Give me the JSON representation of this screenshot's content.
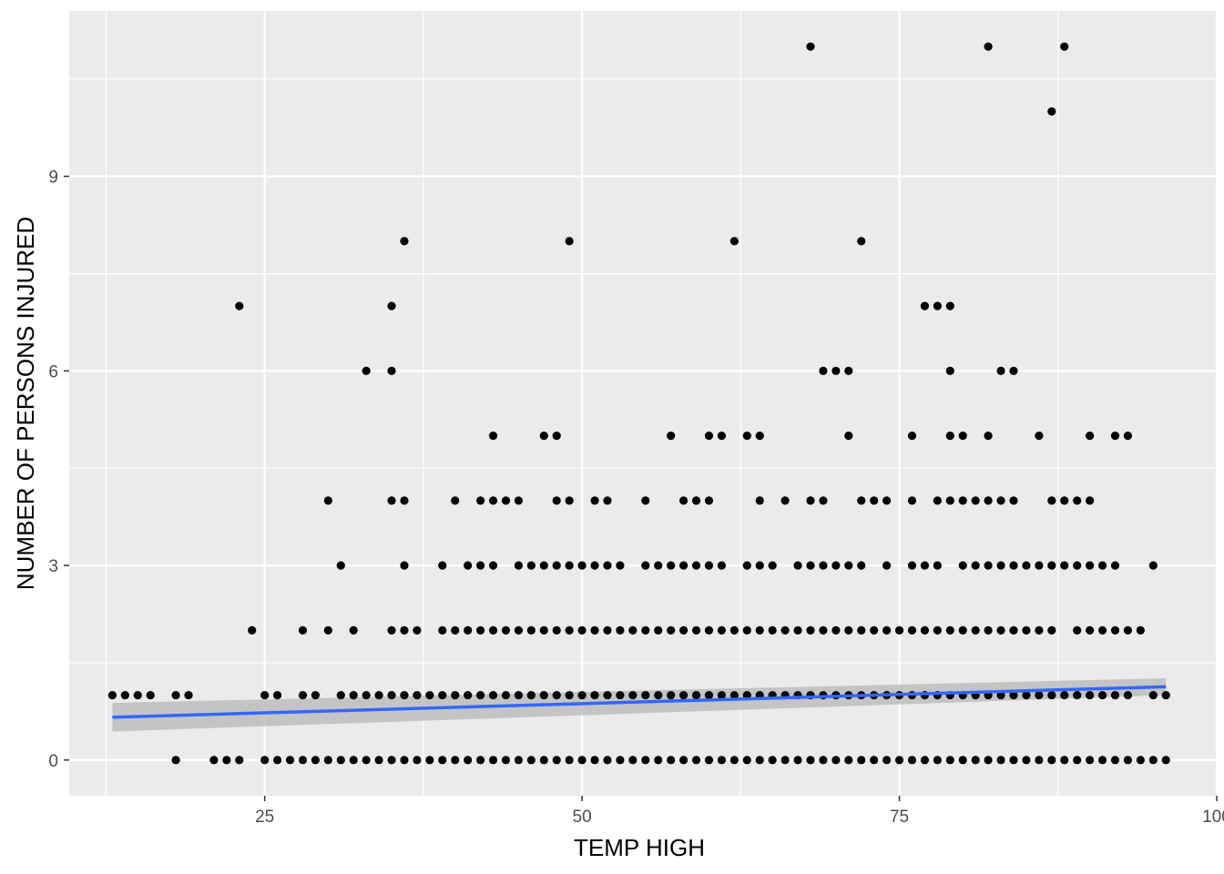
{
  "chart_data": {
    "type": "scatter",
    "title": "",
    "xlabel": "TEMP HIGH",
    "ylabel": "NUMBER OF PERSONS INJURED",
    "xlim": [
      9.6,
      100
    ],
    "ylim": [
      -0.55,
      11.55
    ],
    "x_ticks": [
      25,
      50,
      75,
      100
    ],
    "y_ticks": [
      0,
      3,
      6,
      9
    ],
    "grid": true,
    "colors": {
      "panel": "#ebebeb",
      "grid_major": "#ffffff",
      "points": "#000000",
      "smooth_line": "#3366ff",
      "ribbon": "#bdbdbd"
    },
    "levels": [
      {
        "y": 0,
        "x": [
          18,
          21,
          22,
          23,
          25,
          26,
          27,
          28,
          29,
          30,
          31,
          32,
          33,
          34,
          35,
          36,
          37,
          38,
          39,
          40,
          41,
          42,
          43,
          44,
          45,
          46,
          47,
          48,
          49,
          50,
          51,
          52,
          53,
          54,
          55,
          56,
          57,
          58,
          59,
          60,
          61,
          62,
          63,
          64,
          65,
          66,
          67,
          68,
          69,
          70,
          71,
          72,
          73,
          74,
          75,
          76,
          77,
          78,
          79,
          80,
          81,
          82,
          83,
          84,
          85,
          86,
          87,
          88,
          89,
          90,
          91,
          92,
          93,
          94,
          95,
          96
        ]
      },
      {
        "y": 1,
        "x": [
          13,
          14,
          15,
          16,
          18,
          19,
          25,
          26,
          28,
          29,
          31,
          32,
          33,
          34,
          35,
          36,
          37,
          38,
          39,
          40,
          41,
          42,
          43,
          44,
          45,
          46,
          47,
          48,
          49,
          50,
          51,
          52,
          53,
          54,
          55,
          56,
          57,
          58,
          59,
          60,
          61,
          62,
          63,
          64,
          65,
          66,
          67,
          68,
          69,
          70,
          71,
          72,
          73,
          74,
          75,
          76,
          77,
          78,
          79,
          80,
          81,
          82,
          83,
          84,
          85,
          86,
          87,
          88,
          89,
          90,
          91,
          92,
          93,
          95,
          96
        ]
      },
      {
        "y": 2,
        "x": [
          24,
          28,
          30,
          32,
          35,
          36,
          37,
          39,
          40,
          41,
          42,
          43,
          44,
          45,
          46,
          47,
          48,
          49,
          50,
          51,
          52,
          53,
          54,
          55,
          56,
          57,
          58,
          59,
          60,
          61,
          62,
          63,
          64,
          65,
          66,
          67,
          68,
          69,
          70,
          71,
          72,
          73,
          74,
          75,
          76,
          77,
          78,
          79,
          80,
          81,
          82,
          83,
          84,
          85,
          86,
          87,
          89,
          90,
          91,
          92,
          93,
          94
        ]
      },
      {
        "y": 3,
        "x": [
          31,
          36,
          39,
          41,
          42,
          43,
          45,
          46,
          47,
          48,
          49,
          50,
          51,
          52,
          53,
          55,
          56,
          57,
          58,
          59,
          60,
          61,
          63,
          64,
          65,
          67,
          68,
          69,
          70,
          71,
          72,
          74,
          76,
          77,
          78,
          80,
          81,
          82,
          83,
          84,
          85,
          86,
          87,
          88,
          89,
          90,
          91,
          92,
          95
        ]
      },
      {
        "y": 4,
        "x": [
          30,
          35,
          36,
          40,
          42,
          43,
          44,
          45,
          48,
          49,
          51,
          52,
          55,
          58,
          59,
          60,
          64,
          66,
          68,
          69,
          72,
          73,
          74,
          76,
          78,
          79,
          80,
          81,
          82,
          83,
          84,
          87,
          88,
          89,
          90
        ]
      },
      {
        "y": 5,
        "x": [
          43,
          47,
          48,
          57,
          60,
          61,
          63,
          64,
          71,
          76,
          79,
          80,
          82,
          86,
          90,
          92,
          93
        ]
      },
      {
        "y": 6,
        "x": [
          33,
          35,
          69,
          70,
          71,
          79,
          83,
          84
        ]
      },
      {
        "y": 7,
        "x": [
          23,
          35,
          77,
          78,
          79
        ]
      },
      {
        "y": 8,
        "x": [
          36,
          49,
          62,
          72
        ]
      },
      {
        "y": 10,
        "x": [
          87
        ]
      },
      {
        "y": 11,
        "x": [
          68,
          82,
          88
        ]
      }
    ],
    "smooth": {
      "method": "linear",
      "x": [
        13,
        96
      ],
      "y": [
        0.66,
        1.13
      ],
      "ci_low": [
        0.44,
        1.0
      ],
      "ci_high": [
        0.88,
        1.26
      ]
    }
  }
}
